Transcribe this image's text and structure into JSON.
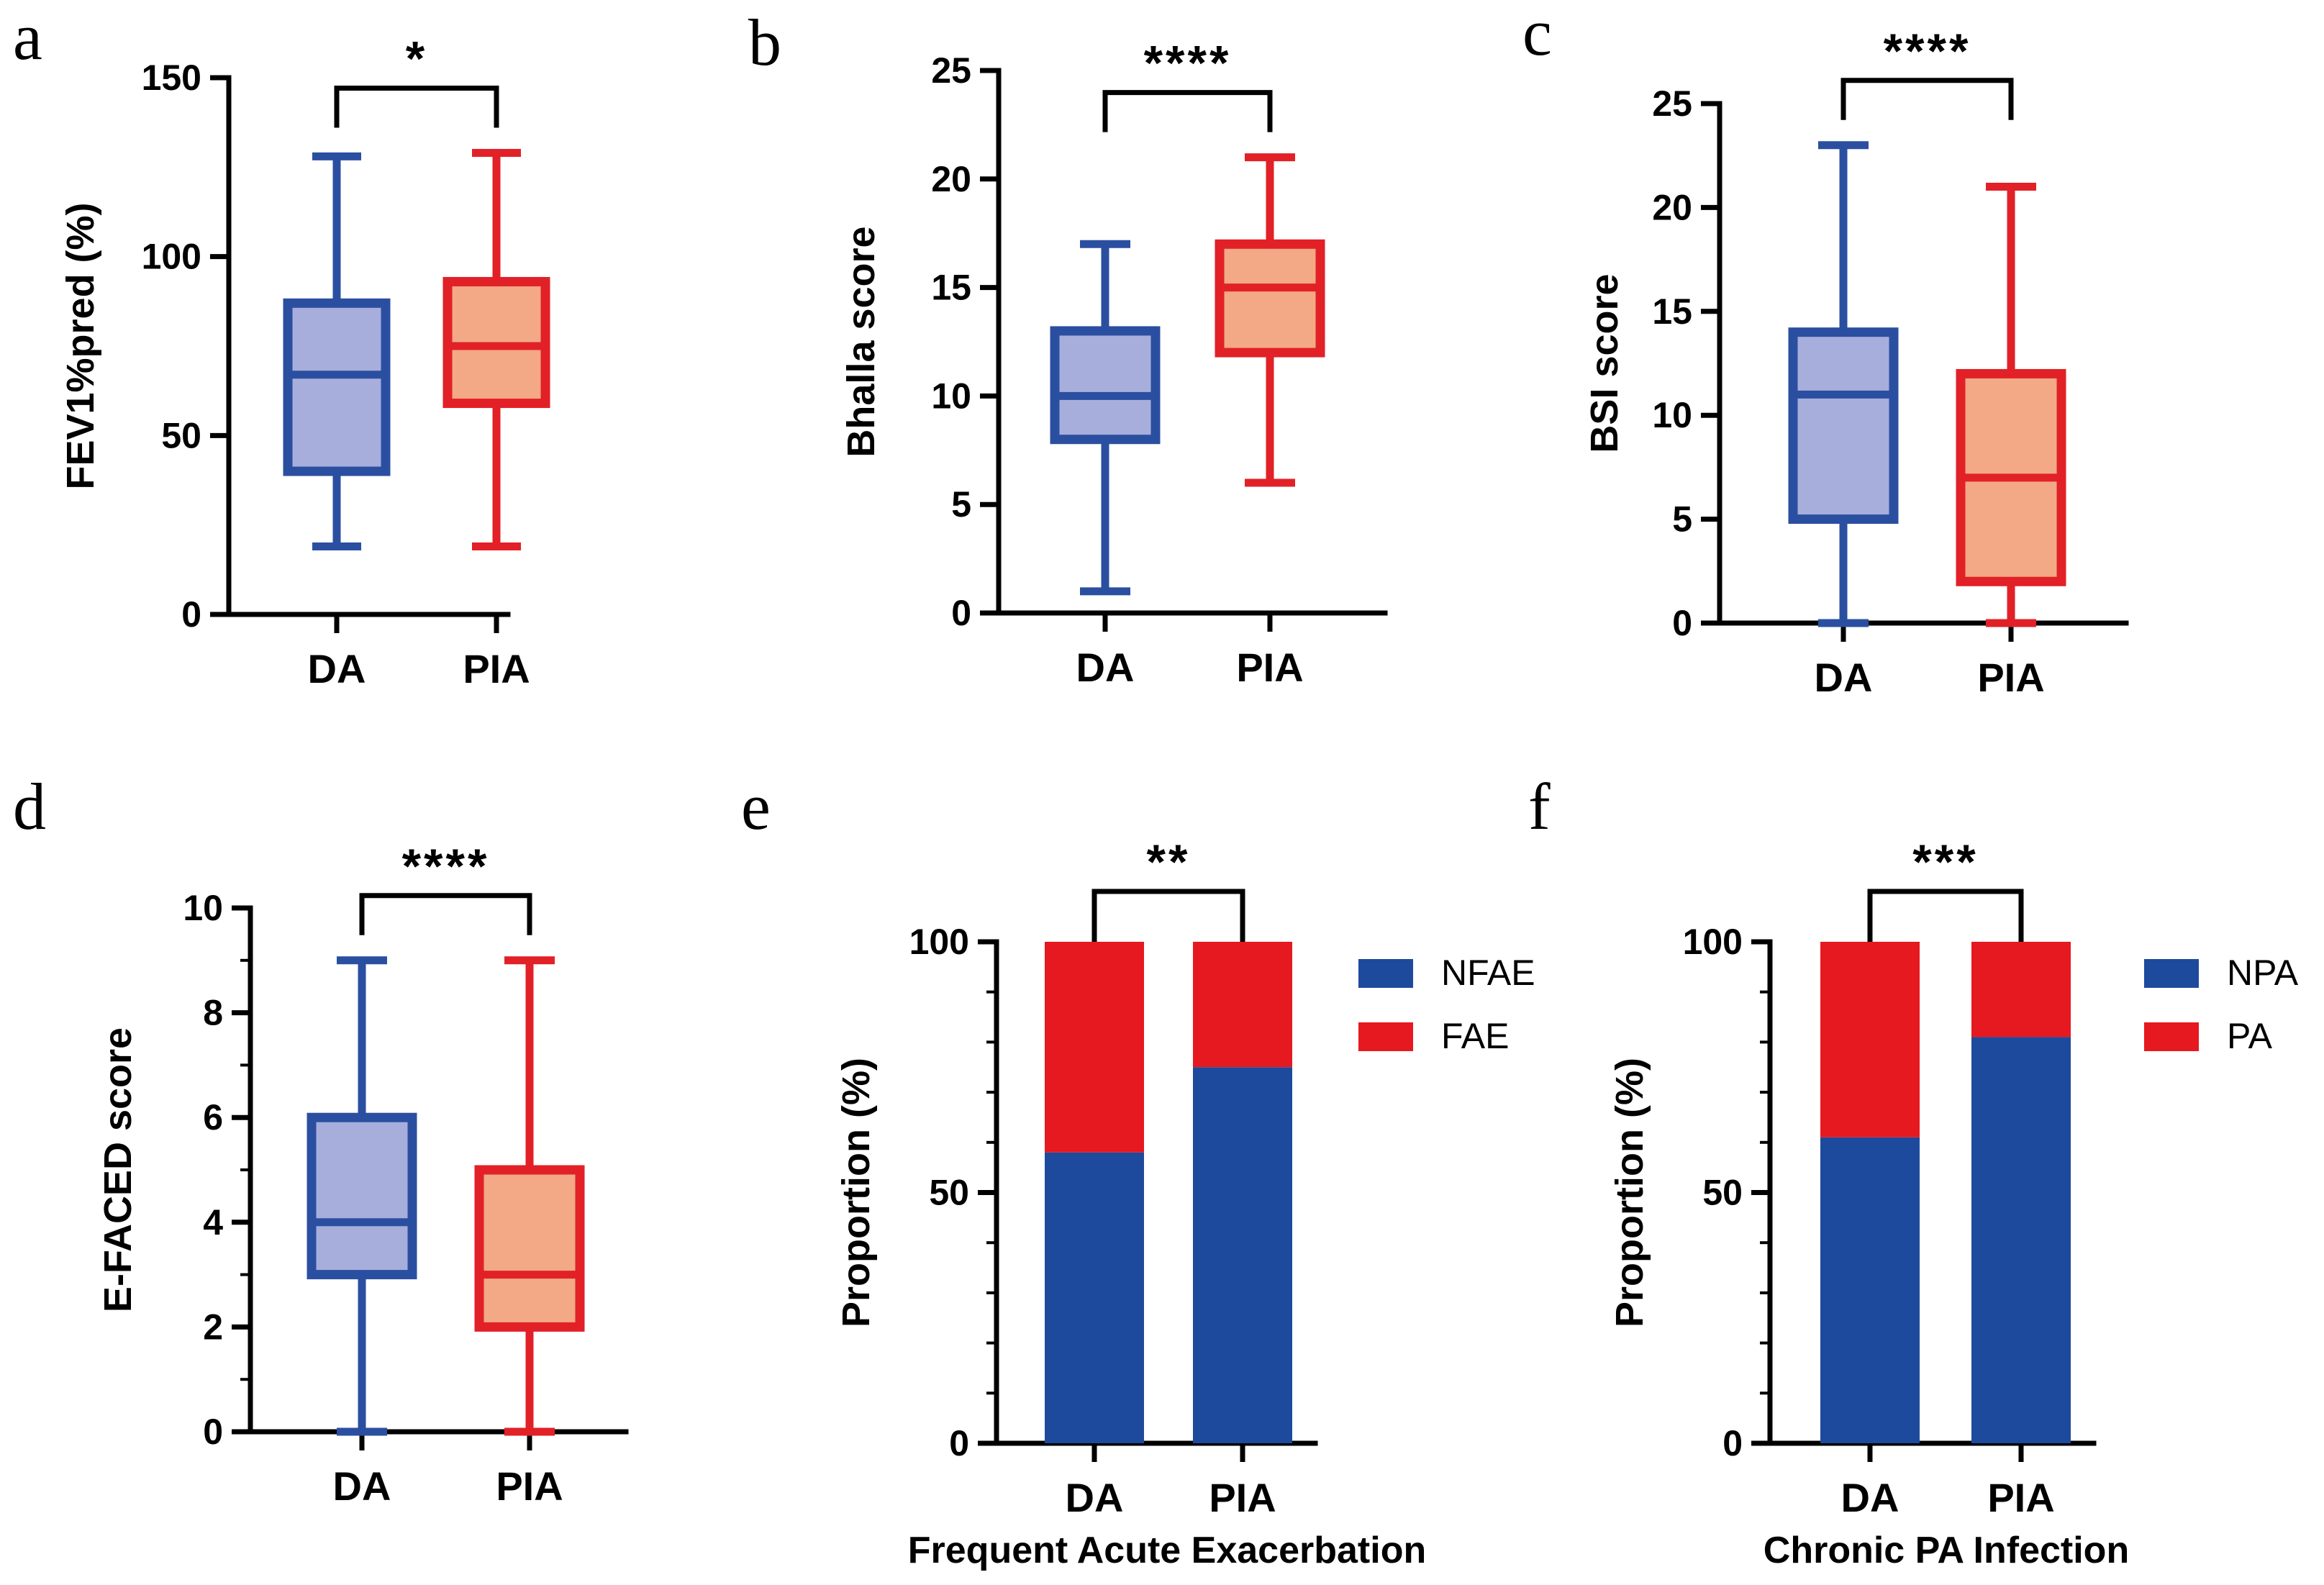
{
  "colors": {
    "da_line": "#2B4FA0",
    "da_fill": "#A7AEDB",
    "pia_line": "#E12127",
    "pia_fill": "#F3A985",
    "bar_blue": "#1D4A9C",
    "bar_red": "#E5191F",
    "axis": "#000000"
  },
  "chart_data": [
    {
      "type": "boxplot",
      "panel": "a",
      "ylabel": "FEV1%pred (%)",
      "xlabel": "",
      "ylim": [
        0,
        150
      ],
      "yticks": [
        0,
        50,
        100,
        150
      ],
      "minor_step": 0,
      "significance": "*",
      "categories": [
        "DA",
        "PIA"
      ],
      "series": [
        {
          "name": "DA",
          "min": 19,
          "q1": 40,
          "median": 67,
          "q3": 87,
          "max": 128
        },
        {
          "name": "PIA",
          "min": 19,
          "q1": 59,
          "median": 75,
          "q3": 93,
          "max": 129
        }
      ]
    },
    {
      "type": "boxplot",
      "panel": "b",
      "ylabel": "Bhalla score",
      "xlabel": "",
      "ylim": [
        0,
        25
      ],
      "yticks": [
        0,
        5,
        10,
        15,
        20,
        25
      ],
      "minor_step": 0,
      "significance": "****",
      "categories": [
        "DA",
        "PIA"
      ],
      "series": [
        {
          "name": "DA",
          "min": 1,
          "q1": 8,
          "median": 10,
          "q3": 13,
          "max": 17
        },
        {
          "name": "PIA",
          "min": 6,
          "q1": 12,
          "median": 15,
          "q3": 17,
          "max": 21
        }
      ]
    },
    {
      "type": "boxplot",
      "panel": "c",
      "ylabel": "BSI score",
      "xlabel": "",
      "ylim": [
        0,
        25
      ],
      "yticks": [
        0,
        5,
        10,
        15,
        20,
        25
      ],
      "minor_step": 0,
      "significance": "****",
      "categories": [
        "DA",
        "PIA"
      ],
      "series": [
        {
          "name": "DA",
          "min": 0,
          "q1": 5,
          "median": 11,
          "q3": 14,
          "max": 23
        },
        {
          "name": "PIA",
          "min": 0,
          "q1": 2,
          "median": 7,
          "q3": 12,
          "max": 21
        }
      ]
    },
    {
      "type": "boxplot",
      "panel": "d",
      "ylabel": "E-FACED score",
      "xlabel": "",
      "ylim": [
        0,
        10
      ],
      "yticks": [
        0,
        2,
        4,
        6,
        8,
        10
      ],
      "minor_step": 1,
      "significance": "****",
      "categories": [
        "DA",
        "PIA"
      ],
      "series": [
        {
          "name": "DA",
          "min": 0,
          "q1": 3,
          "median": 4,
          "q3": 6,
          "max": 9
        },
        {
          "name": "PIA",
          "min": 0,
          "q1": 2,
          "median": 3,
          "q3": 5,
          "max": 9
        }
      ]
    },
    {
      "type": "stacked_bar",
      "panel": "e",
      "ylabel": "Proportion (%)",
      "xlabel": "Frequent Acute Exacerbation",
      "ylim": [
        0,
        100
      ],
      "yticks": [
        0,
        50,
        100
      ],
      "minor_step": 10,
      "significance": "**",
      "categories": [
        "DA",
        "PIA"
      ],
      "series": [
        {
          "name": "NFAE",
          "values": [
            58,
            75
          ]
        },
        {
          "name": "FAE",
          "values": [
            42,
            25
          ]
        }
      ]
    },
    {
      "type": "stacked_bar",
      "panel": "f",
      "ylabel": "Proportion (%)",
      "xlabel": "Chronic PA Infection",
      "ylim": [
        0,
        100
      ],
      "yticks": [
        0,
        50,
        100
      ],
      "minor_step": 10,
      "significance": "***",
      "categories": [
        "DA",
        "PIA"
      ],
      "series": [
        {
          "name": "NPA",
          "values": [
            61,
            81
          ]
        },
        {
          "name": "PA",
          "values": [
            39,
            19
          ]
        }
      ]
    }
  ]
}
